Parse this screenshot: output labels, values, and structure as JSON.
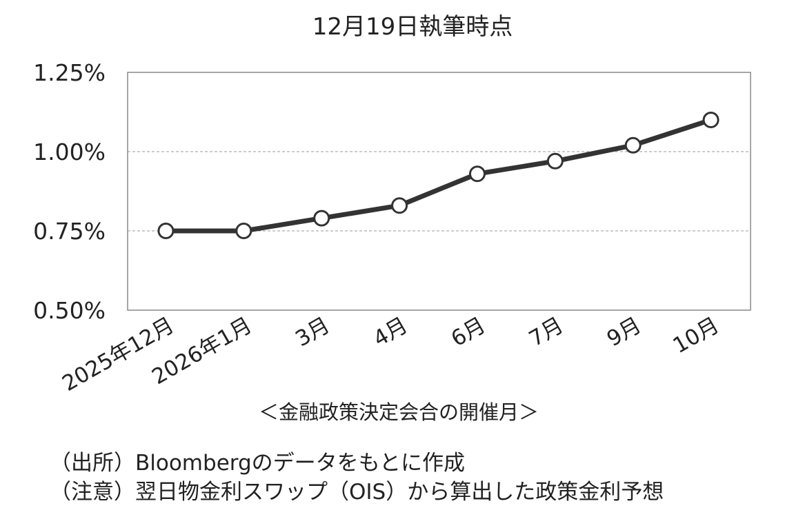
{
  "chart_data": {
    "type": "line",
    "title": "12月19日執筆時点",
    "xlabel": "＜金融政策決定会合の開催月＞",
    "ylabel": "",
    "categories": [
      "2025年12月",
      "2026年1月",
      "3月",
      "4月",
      "6月",
      "7月",
      "9月",
      "10月"
    ],
    "series": [
      {
        "values": [
          0.75,
          0.75,
          0.79,
          0.83,
          0.93,
          0.97,
          1.02,
          1.1
        ]
      }
    ],
    "ylim": [
      0.5,
      1.25
    ],
    "yticks": [
      0.5,
      0.75,
      1.0,
      1.25
    ],
    "ytick_labels": [
      "0.50%",
      "0.75%",
      "1.00%",
      "1.25%"
    ],
    "grid": "horizontal dashed",
    "line_color": "#333333",
    "marker_fill": "#ffffff"
  },
  "notes": {
    "source": "（出所）Bloombergのデータをもとに作成",
    "caution": "（注意）翌日物金利スワップ（OIS）から算出した政策金利予想"
  }
}
